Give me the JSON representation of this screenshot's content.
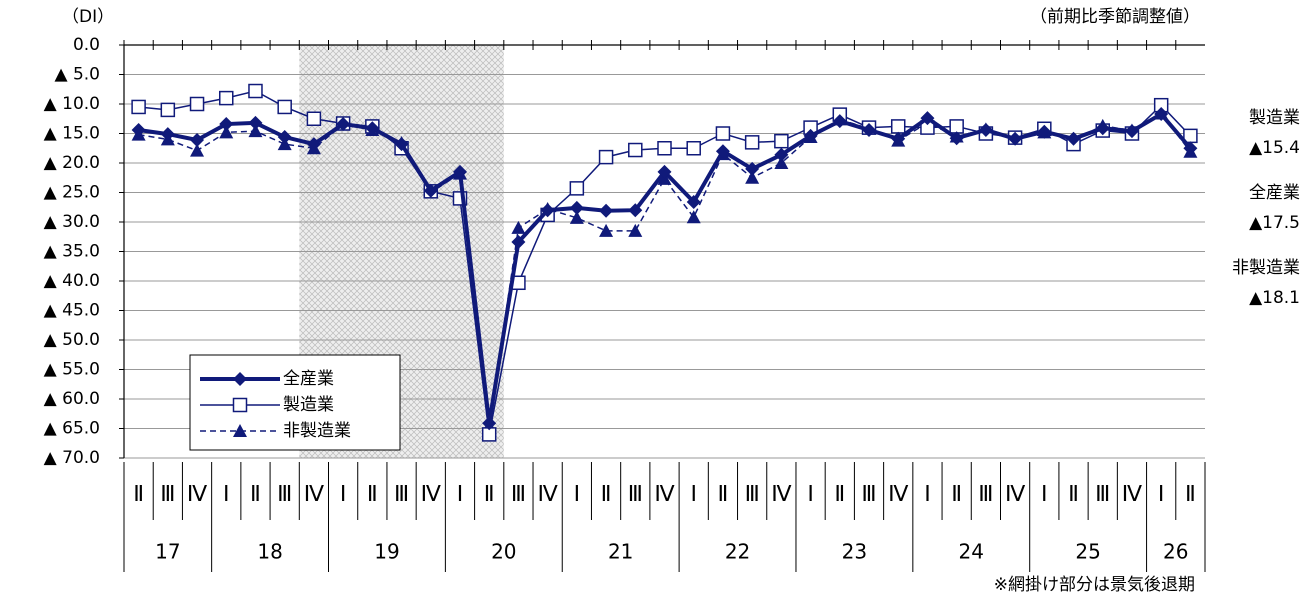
{
  "chart_data": {
    "type": "line",
    "y_unit_label": "（DI）",
    "subtitle": "（前期比季節調整値）",
    "note": "※網掛け部分は景気後退期",
    "categories": [
      "Ⅱ",
      "Ⅲ",
      "Ⅳ",
      "Ⅰ",
      "Ⅱ",
      "Ⅲ",
      "Ⅳ",
      "Ⅰ",
      "Ⅱ",
      "Ⅲ",
      "Ⅳ",
      "Ⅰ",
      "Ⅱ",
      "Ⅲ",
      "Ⅳ",
      "Ⅰ",
      "Ⅱ",
      "Ⅲ",
      "Ⅳ",
      "Ⅰ",
      "Ⅱ",
      "Ⅲ",
      "Ⅳ",
      "Ⅰ",
      "Ⅱ",
      "Ⅲ",
      "Ⅳ",
      "Ⅰ",
      "Ⅱ",
      "Ⅲ",
      "Ⅳ",
      "Ⅰ",
      "Ⅱ",
      "Ⅲ",
      "Ⅳ",
      "Ⅰ",
      "Ⅱ"
    ],
    "years": [
      "17",
      "18",
      "19",
      "20",
      "21",
      "22",
      "23",
      "24",
      "25",
      "26"
    ],
    "recession": {
      "from": 6,
      "to": 12
    },
    "ylim": [
      -70,
      0
    ],
    "yticks": [
      {
        "value": 0,
        "label": "0.0"
      },
      {
        "value": -5,
        "label": "▲ 5.0"
      },
      {
        "value": -10,
        "label": "▲ 10.0"
      },
      {
        "value": -15,
        "label": "▲ 15.0"
      },
      {
        "value": -20,
        "label": "▲ 20.0"
      },
      {
        "value": -25,
        "label": "▲ 25.0"
      },
      {
        "value": -30,
        "label": "▲ 30.0"
      },
      {
        "value": -35,
        "label": "▲ 35.0"
      },
      {
        "value": -40,
        "label": "▲ 40.0"
      },
      {
        "value": -45,
        "label": "▲ 45.0"
      },
      {
        "value": -50,
        "label": "▲ 50.0"
      },
      {
        "value": -55,
        "label": "▲ 55.0"
      },
      {
        "value": -60,
        "label": "▲ 60.0"
      },
      {
        "value": -65,
        "label": "▲ 65.0"
      },
      {
        "value": -70,
        "label": "▲ 70.0"
      }
    ],
    "grid": true,
    "series": [
      {
        "name": "全産業",
        "color": "#101a7a",
        "marker": "diamond",
        "line_width": 4,
        "dash": false,
        "end_label": "▲17.5",
        "values": [
          -14.4,
          -15.1,
          -16.1,
          -13.4,
          -13.2,
          -15.6,
          -16.8,
          -13.4,
          -14.1,
          -16.8,
          -24.7,
          -21.5,
          -64.1,
          -33.4,
          -28.0,
          -27.6,
          -28.1,
          -28.0,
          -21.5,
          -26.6,
          -18.0,
          -21.0,
          -18.6,
          -15.4,
          -12.9,
          -14.4,
          -15.9,
          -12.4,
          -15.8,
          -14.4,
          -15.9,
          -14.7,
          -15.9,
          -14.1,
          -14.6,
          -11.7,
          -17.5
        ]
      },
      {
        "name": "製造業",
        "color": "#101a7a",
        "marker": "square",
        "line_width": 1.5,
        "dash": false,
        "end_label": "▲15.4",
        "values": [
          -10.5,
          -11.0,
          -10.0,
          -9.0,
          -7.8,
          -10.5,
          -12.5,
          -13.3,
          -13.8,
          -17.5,
          -24.8,
          -26.0,
          -66.0,
          -40.3,
          -28.8,
          -24.3,
          -19.0,
          -17.8,
          -17.5,
          -17.5,
          -15.0,
          -16.5,
          -16.3,
          -14.0,
          -11.8,
          -14.0,
          -13.8,
          -14.0,
          -13.8,
          -15.0,
          -15.7,
          -14.2,
          -16.8,
          -14.5,
          -15.0,
          -10.2,
          -15.4
        ]
      },
      {
        "name": "非製造業",
        "color": "#101a7a",
        "marker": "triangle",
        "line_width": 1.5,
        "dash": true,
        "end_label": "▲18.1",
        "values": [
          -15.2,
          -16.0,
          -17.9,
          -14.8,
          -14.6,
          -16.8,
          -17.5,
          -13.5,
          -14.4,
          -16.6,
          -25.0,
          -21.8,
          -64.6,
          -31.0,
          -27.8,
          -29.3,
          -31.5,
          -31.5,
          -22.7,
          -29.2,
          -18.5,
          -22.5,
          -20.0,
          -15.6,
          -12.6,
          -14.2,
          -16.2,
          -13.2,
          -15.5,
          -14.3,
          -15.8,
          -14.8,
          -16.0,
          -13.7,
          -14.5,
          -11.6,
          -18.1
        ]
      }
    ]
  }
}
